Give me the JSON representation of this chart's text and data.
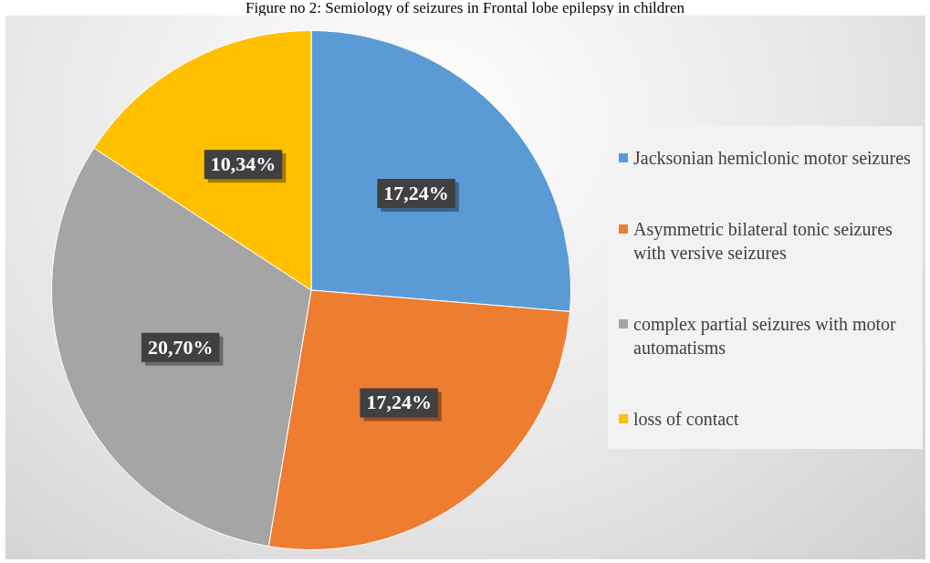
{
  "chart_data": {
    "type": "pie",
    "title": "Figure no 2: Semiology of seizures in Frontal lobe epilepsy in children",
    "categories": [
      "Jacksonian hemiclonic motor seizures",
      "Asymmetric bilateral tonic seizures with versive seizures",
      "complex partial seizures with motor automatisms",
      "loss of contact"
    ],
    "values": [
      17.24,
      17.24,
      20.7,
      10.34
    ],
    "colors": [
      "#5b9bd5",
      "#ed7d31",
      "#a5a5a5",
      "#ffc000"
    ],
    "value_labels": [
      "17,24%",
      "17,24%",
      "20,70%",
      "10,34%"
    ],
    "legend": "right"
  }
}
